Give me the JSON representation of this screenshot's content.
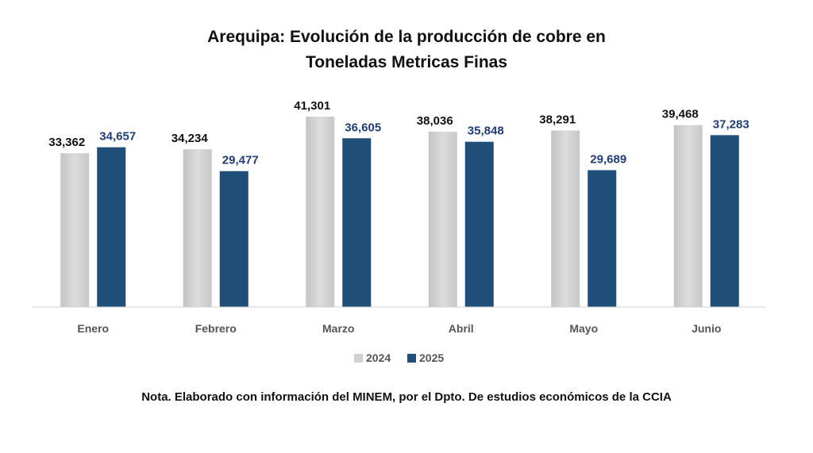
{
  "chart_data": {
    "type": "bar",
    "title": "Arequipa: Evolución de la producción de cobre en",
    "subtitle": "Toneladas Metricas Finas",
    "categories": [
      "Enero",
      "Febrero",
      "Marzo",
      "Abril",
      "Mayo",
      "Junio"
    ],
    "series": [
      {
        "name": "2024",
        "values": [
          33362,
          34234,
          41301,
          38036,
          38291,
          39468
        ],
        "labels": [
          "33,362",
          "34,234",
          "41,301",
          "38,036",
          "38,291",
          "39,468"
        ],
        "color": "#d4d4d4",
        "label_color": "#111111"
      },
      {
        "name": "2025",
        "values": [
          34657,
          29477,
          36605,
          35848,
          29689,
          37283
        ],
        "labels": [
          "34,657",
          "29,477",
          "36,605",
          "35,848",
          "29,689",
          "37,283"
        ],
        "color": "#1f4e79",
        "label_color": "#1f3d7a"
      }
    ],
    "xlabel": "",
    "ylabel": "",
    "ylim": [
      0,
      42000
    ],
    "grid": false,
    "legend": "bottom-center"
  },
  "note": "Nota. Elaborado con información del MINEM, por el Dpto. De estudios económicos de la CCIA"
}
